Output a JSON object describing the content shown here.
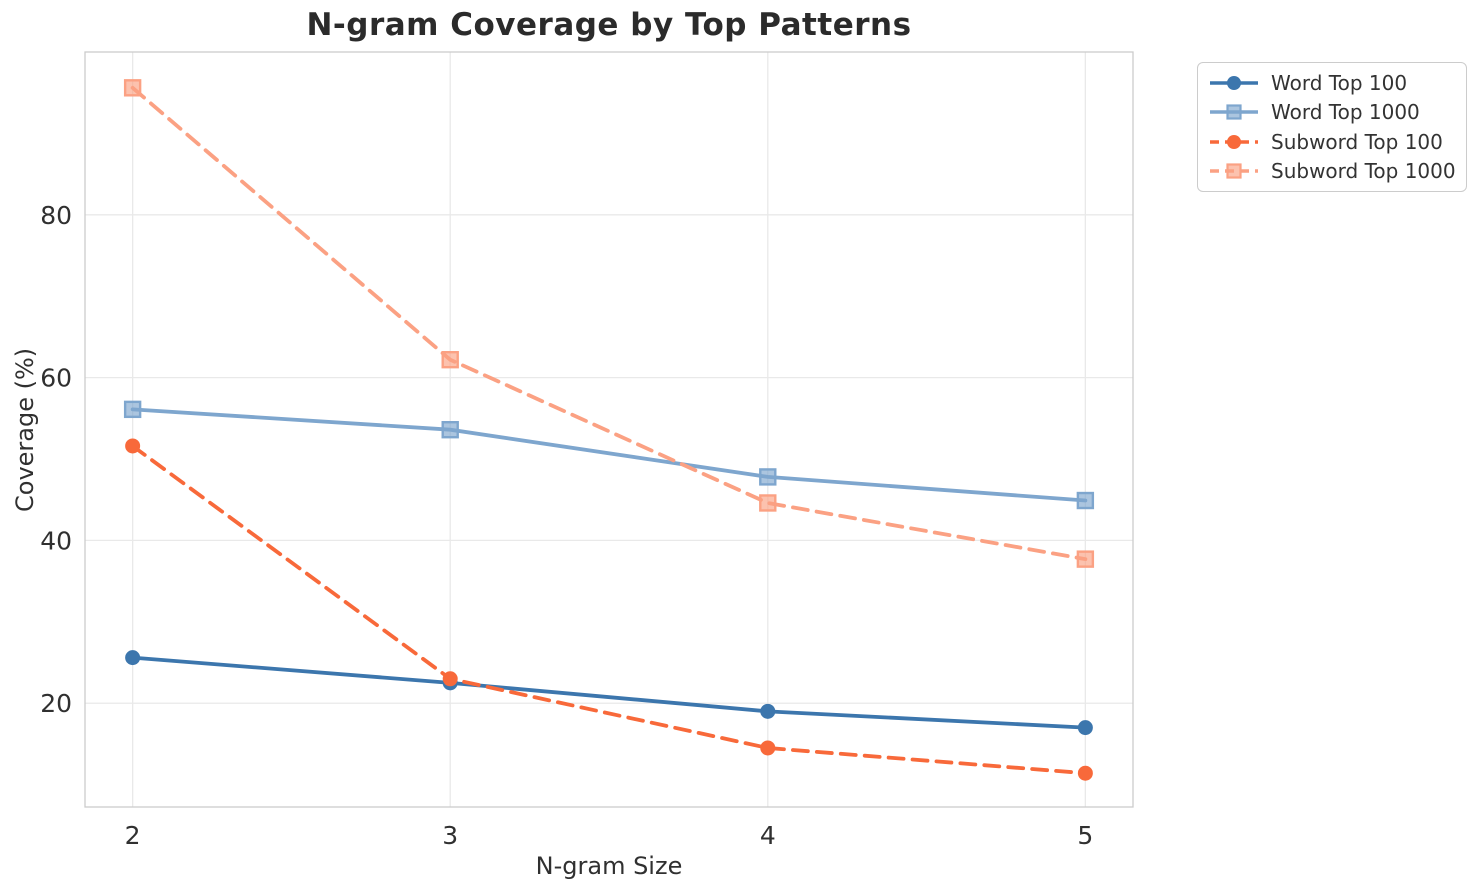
{
  "chart_data": {
    "type": "line",
    "title": "N-gram Coverage by Top Patterns",
    "xlabel": "N-gram Size",
    "ylabel": "Coverage (%)",
    "x": [
      2,
      3,
      4,
      5
    ],
    "xticks": [
      "2",
      "3",
      "4",
      "5"
    ],
    "yticks": [
      "20",
      "40",
      "60",
      "80"
    ],
    "ytick_values": [
      20,
      40,
      60,
      80
    ],
    "xlim": [
      1.85,
      5.15
    ],
    "ylim": [
      7.25,
      100.0
    ],
    "grid": true,
    "legend_position": "outside-upper-right",
    "series": [
      {
        "name": "Word Top 100",
        "color": "#3c76ad",
        "linestyle": "solid",
        "marker": "circle",
        "values": [
          25.6,
          22.5,
          19.0,
          17.0
        ]
      },
      {
        "name": "Word Top 1000",
        "color": "#7ea6ce",
        "linestyle": "solid",
        "marker": "square",
        "values": [
          56.1,
          53.6,
          47.8,
          44.9
        ]
      },
      {
        "name": "Subword Top 100",
        "color": "#f8693a",
        "linestyle": "dashed",
        "marker": "circle",
        "values": [
          51.6,
          23.0,
          14.5,
          11.4
        ]
      },
      {
        "name": "Subword Top 1000",
        "color": "#fba183",
        "linestyle": "dashed",
        "marker": "square",
        "values": [
          95.6,
          62.2,
          44.6,
          37.7
        ]
      }
    ]
  },
  "styles": {
    "background": "#ffffff",
    "grid_color": "#e9e9e9",
    "spine_color": "#cccccc",
    "title_color": "#2b2b2b",
    "tick_color": "#303030",
    "axis_label_color": "#303030",
    "legend_text_color": "#333333",
    "legend_border_color": "#cccccc"
  }
}
